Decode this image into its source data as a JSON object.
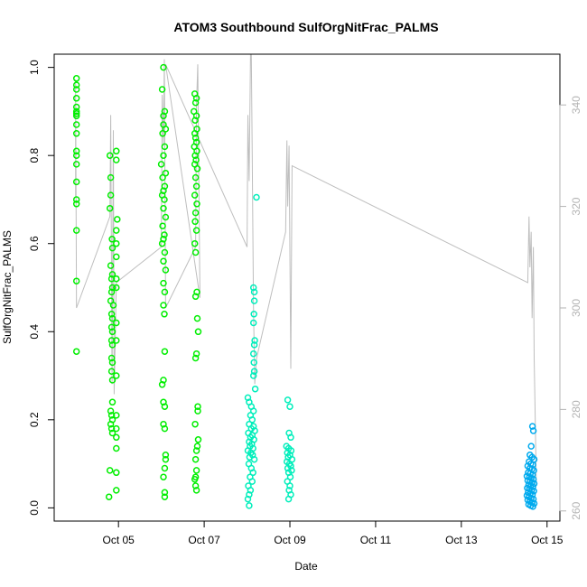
{
  "chart_data": {
    "type": "scatter",
    "title": "ATOM3 Southbound SulfOrgNitFrac_PALMS",
    "xlabel": "Date",
    "ylabel": "SulfOrgNitFrac_PALMS",
    "x_ticks": [
      "Oct 05",
      "Oct 07",
      "Oct 09",
      "Oct 11",
      "Oct 13",
      "Oct 15"
    ],
    "x_tick_days": [
      5,
      7,
      9,
      11,
      13,
      15
    ],
    "xlim_days": [
      3.5,
      15.3
    ],
    "y_ticks": [
      "0.0",
      "0.2",
      "0.4",
      "0.6",
      "0.8",
      "1.0"
    ],
    "y_tick_values": [
      0,
      0.2,
      0.4,
      0.6,
      0.8,
      1.0
    ],
    "ylim": [
      -0.03,
      1.03
    ],
    "y2_ticks": [
      "260",
      "280",
      "300",
      "320",
      "340"
    ],
    "y2_tick_values": [
      260,
      280,
      300,
      320,
      340
    ],
    "y2lim": [
      258,
      350
    ],
    "colors": {
      "point_green": "#00ee00",
      "point_cyan": "#00eebb",
      "point_blue": "#00aaee",
      "overlay_line": "#bebebe",
      "right_axis": "#b3b3b3"
    },
    "legend": "none",
    "grid": false,
    "series": [
      {
        "color": "#00ee00",
        "points": [
          [
            4.02,
            0.975
          ],
          [
            4.02,
            0.96
          ],
          [
            4.02,
            0.95
          ],
          [
            4.02,
            0.93
          ],
          [
            4.02,
            0.91
          ],
          [
            4.02,
            0.9
          ],
          [
            4.02,
            0.895
          ],
          [
            4.02,
            0.89
          ],
          [
            4.02,
            0.87
          ],
          [
            4.02,
            0.85
          ],
          [
            4.02,
            0.81
          ],
          [
            4.02,
            0.8
          ],
          [
            4.02,
            0.78
          ],
          [
            4.02,
            0.74
          ],
          [
            4.02,
            0.7
          ],
          [
            4.02,
            0.69
          ],
          [
            4.02,
            0.63
          ],
          [
            4.02,
            0.515
          ],
          [
            4.02,
            0.355
          ],
          [
            4.8,
            0.8
          ],
          [
            4.82,
            0.75
          ],
          [
            4.82,
            0.71
          ],
          [
            4.8,
            0.68
          ],
          [
            4.85,
            0.61
          ],
          [
            4.86,
            0.59
          ],
          [
            4.82,
            0.55
          ],
          [
            4.86,
            0.53
          ],
          [
            4.84,
            0.52
          ],
          [
            4.86,
            0.5
          ],
          [
            4.84,
            0.49
          ],
          [
            4.82,
            0.47
          ],
          [
            4.88,
            0.46
          ],
          [
            4.84,
            0.44
          ],
          [
            4.86,
            0.43
          ],
          [
            4.84,
            0.41
          ],
          [
            4.86,
            0.4
          ],
          [
            4.84,
            0.38
          ],
          [
            4.86,
            0.37
          ],
          [
            4.84,
            0.34
          ],
          [
            4.86,
            0.33
          ],
          [
            4.84,
            0.31
          ],
          [
            4.86,
            0.29
          ],
          [
            4.86,
            0.24
          ],
          [
            4.82,
            0.22
          ],
          [
            4.84,
            0.21
          ],
          [
            4.86,
            0.2
          ],
          [
            4.82,
            0.19
          ],
          [
            4.84,
            0.18
          ],
          [
            4.86,
            0.17
          ],
          [
            4.8,
            0.085
          ],
          [
            4.78,
            0.025
          ],
          [
            4.95,
            0.81
          ],
          [
            4.95,
            0.79
          ],
          [
            4.97,
            0.655
          ],
          [
            4.95,
            0.63
          ],
          [
            4.95,
            0.6
          ],
          [
            4.95,
            0.57
          ],
          [
            4.95,
            0.52
          ],
          [
            4.95,
            0.5
          ],
          [
            4.95,
            0.42
          ],
          [
            4.95,
            0.38
          ],
          [
            4.95,
            0.3
          ],
          [
            4.95,
            0.21
          ],
          [
            4.95,
            0.18
          ],
          [
            4.95,
            0.16
          ],
          [
            4.95,
            0.135
          ],
          [
            4.95,
            0.08
          ],
          [
            4.95,
            0.04
          ],
          [
            6.05,
            1.0
          ],
          [
            6.02,
            0.95
          ],
          [
            6.08,
            0.9
          ],
          [
            6.05,
            0.89
          ],
          [
            6.05,
            0.87
          ],
          [
            6.1,
            0.86
          ],
          [
            6.03,
            0.85
          ],
          [
            6.08,
            0.82
          ],
          [
            6.05,
            0.8
          ],
          [
            6.0,
            0.78
          ],
          [
            6.1,
            0.76
          ],
          [
            6.03,
            0.75
          ],
          [
            6.08,
            0.73
          ],
          [
            6.05,
            0.72
          ],
          [
            6.02,
            0.71
          ],
          [
            6.07,
            0.7
          ],
          [
            6.05,
            0.68
          ],
          [
            6.1,
            0.66
          ],
          [
            6.03,
            0.64
          ],
          [
            6.07,
            0.62
          ],
          [
            6.05,
            0.61
          ],
          [
            6.02,
            0.6
          ],
          [
            6.08,
            0.58
          ],
          [
            6.05,
            0.56
          ],
          [
            6.1,
            0.54
          ],
          [
            6.05,
            0.51
          ],
          [
            6.08,
            0.49
          ],
          [
            6.05,
            0.46
          ],
          [
            6.07,
            0.44
          ],
          [
            6.08,
            0.355
          ],
          [
            6.05,
            0.29
          ],
          [
            6.02,
            0.28
          ],
          [
            6.05,
            0.24
          ],
          [
            6.08,
            0.23
          ],
          [
            6.05,
            0.19
          ],
          [
            6.08,
            0.18
          ],
          [
            6.1,
            0.12
          ],
          [
            6.1,
            0.11
          ],
          [
            6.08,
            0.09
          ],
          [
            6.05,
            0.07
          ],
          [
            6.08,
            0.035
          ],
          [
            6.08,
            0.025
          ],
          [
            6.78,
            0.94
          ],
          [
            6.82,
            0.93
          ],
          [
            6.8,
            0.92
          ],
          [
            6.76,
            0.9
          ],
          [
            6.82,
            0.89
          ],
          [
            6.79,
            0.88
          ],
          [
            6.83,
            0.86
          ],
          [
            6.78,
            0.85
          ],
          [
            6.8,
            0.84
          ],
          [
            6.82,
            0.83
          ],
          [
            6.77,
            0.82
          ],
          [
            6.83,
            0.81
          ],
          [
            6.79,
            0.8
          ],
          [
            6.81,
            0.79
          ],
          [
            6.78,
            0.78
          ],
          [
            6.84,
            0.77
          ],
          [
            6.8,
            0.75
          ],
          [
            6.82,
            0.73
          ],
          [
            6.78,
            0.71
          ],
          [
            6.83,
            0.69
          ],
          [
            6.8,
            0.67
          ],
          [
            6.79,
            0.65
          ],
          [
            6.82,
            0.63
          ],
          [
            6.78,
            0.6
          ],
          [
            6.8,
            0.58
          ],
          [
            6.83,
            0.49
          ],
          [
            6.8,
            0.48
          ],
          [
            6.84,
            0.43
          ],
          [
            6.86,
            0.4
          ],
          [
            6.82,
            0.35
          ],
          [
            6.8,
            0.34
          ],
          [
            6.85,
            0.23
          ],
          [
            6.85,
            0.22
          ],
          [
            6.79,
            0.19
          ],
          [
            6.86,
            0.155
          ],
          [
            6.84,
            0.14
          ],
          [
            6.82,
            0.13
          ],
          [
            6.8,
            0.11
          ],
          [
            6.82,
            0.085
          ],
          [
            6.8,
            0.07
          ],
          [
            6.78,
            0.065
          ],
          [
            6.8,
            0.05
          ],
          [
            6.82,
            0.04
          ]
        ]
      },
      {
        "color": "#00eebb",
        "points": [
          [
            8.22,
            0.705
          ],
          [
            8.15,
            0.5
          ],
          [
            8.17,
            0.49
          ],
          [
            8.17,
            0.47
          ],
          [
            8.16,
            0.44
          ],
          [
            8.15,
            0.42
          ],
          [
            8.18,
            0.38
          ],
          [
            8.17,
            0.37
          ],
          [
            8.15,
            0.35
          ],
          [
            8.16,
            0.33
          ],
          [
            8.17,
            0.31
          ],
          [
            8.15,
            0.3
          ],
          [
            8.19,
            0.27
          ],
          [
            8.02,
            0.25
          ],
          [
            8.05,
            0.24
          ],
          [
            8.1,
            0.23
          ],
          [
            8.15,
            0.22
          ],
          [
            8.08,
            0.21
          ],
          [
            8.12,
            0.2
          ],
          [
            8.05,
            0.19
          ],
          [
            8.15,
            0.185
          ],
          [
            8.1,
            0.18
          ],
          [
            8.18,
            0.175
          ],
          [
            8.03,
            0.17
          ],
          [
            8.12,
            0.165
          ],
          [
            8.08,
            0.16
          ],
          [
            8.16,
            0.155
          ],
          [
            8.05,
            0.15
          ],
          [
            8.11,
            0.145
          ],
          [
            8.07,
            0.14
          ],
          [
            8.14,
            0.135
          ],
          [
            8.02,
            0.13
          ],
          [
            8.09,
            0.125
          ],
          [
            8.13,
            0.12
          ],
          [
            8.06,
            0.115
          ],
          [
            8.17,
            0.11
          ],
          [
            8.04,
            0.1
          ],
          [
            8.1,
            0.09
          ],
          [
            8.14,
            0.08
          ],
          [
            8.07,
            0.07
          ],
          [
            8.12,
            0.06
          ],
          [
            8.03,
            0.05
          ],
          [
            8.08,
            0.04
          ],
          [
            8.05,
            0.03
          ],
          [
            8.02,
            0.02
          ],
          [
            8.05,
            0.005
          ],
          [
            8.95,
            0.245
          ],
          [
            9.0,
            0.23
          ],
          [
            8.98,
            0.17
          ],
          [
            9.02,
            0.16
          ],
          [
            8.92,
            0.14
          ],
          [
            8.97,
            0.135
          ],
          [
            9.03,
            0.13
          ],
          [
            8.94,
            0.125
          ],
          [
            9.0,
            0.12
          ],
          [
            8.96,
            0.115
          ],
          [
            9.05,
            0.11
          ],
          [
            8.93,
            0.105
          ],
          [
            8.99,
            0.1
          ],
          [
            9.02,
            0.095
          ],
          [
            8.95,
            0.09
          ],
          [
            9.04,
            0.085
          ],
          [
            8.97,
            0.08
          ],
          [
            9.01,
            0.07
          ],
          [
            8.94,
            0.06
          ],
          [
            9.0,
            0.05
          ],
          [
            8.98,
            0.04
          ],
          [
            9.02,
            0.03
          ],
          [
            8.97,
            0.02
          ]
        ]
      },
      {
        "color": "#00aaee",
        "points": [
          [
            14.66,
            0.185
          ],
          [
            14.68,
            0.175
          ],
          [
            14.63,
            0.14
          ],
          [
            14.6,
            0.12
          ],
          [
            14.65,
            0.115
          ],
          [
            14.7,
            0.11
          ],
          [
            14.58,
            0.105
          ],
          [
            14.62,
            0.1
          ],
          [
            14.67,
            0.098
          ],
          [
            14.55,
            0.095
          ],
          [
            14.6,
            0.09
          ],
          [
            14.65,
            0.088
          ],
          [
            14.69,
            0.085
          ],
          [
            14.56,
            0.08
          ],
          [
            14.61,
            0.078
          ],
          [
            14.66,
            0.075
          ],
          [
            14.53,
            0.072
          ],
          [
            14.59,
            0.07
          ],
          [
            14.63,
            0.068
          ],
          [
            14.68,
            0.065
          ],
          [
            14.55,
            0.062
          ],
          [
            14.6,
            0.06
          ],
          [
            14.65,
            0.058
          ],
          [
            14.7,
            0.055
          ],
          [
            14.57,
            0.052
          ],
          [
            14.62,
            0.05
          ],
          [
            14.67,
            0.048
          ],
          [
            14.54,
            0.045
          ],
          [
            14.59,
            0.043
          ],
          [
            14.64,
            0.04
          ],
          [
            14.69,
            0.038
          ],
          [
            14.56,
            0.035
          ],
          [
            14.61,
            0.033
          ],
          [
            14.66,
            0.03
          ],
          [
            14.53,
            0.028
          ],
          [
            14.58,
            0.025
          ],
          [
            14.63,
            0.022
          ],
          [
            14.68,
            0.02
          ],
          [
            14.55,
            0.018
          ],
          [
            14.6,
            0.015
          ],
          [
            14.65,
            0.012
          ],
          [
            14.7,
            0.01
          ],
          [
            14.57,
            0.008
          ],
          [
            14.62,
            0.005
          ],
          [
            14.67,
            0.003
          ]
        ]
      }
    ],
    "overlay_line": {
      "axis": "y2",
      "color": "#bebebe",
      "points": [
        [
          4.0,
          322
        ],
        [
          4.0,
          345
        ],
        [
          4.02,
          300
        ],
        [
          4.8,
          318
        ],
        [
          4.82,
          338
        ],
        [
          4.85,
          285
        ],
        [
          4.88,
          335
        ],
        [
          4.9,
          283
        ],
        [
          4.95,
          305
        ],
        [
          6.0,
          312
        ],
        [
          6.02,
          342
        ],
        [
          6.05,
          332
        ],
        [
          6.07,
          349
        ],
        [
          6.1,
          300
        ],
        [
          6.8,
          312
        ],
        [
          6.82,
          340
        ],
        [
          6.85,
          348
        ],
        [
          6.9,
          302
        ],
        [
          6.1,
          348
        ],
        [
          8.0,
          312
        ],
        [
          8.02,
          338
        ],
        [
          8.05,
          325
        ],
        [
          8.08,
          352
        ],
        [
          8.1,
          365
        ],
        [
          8.12,
          330
        ],
        [
          8.15,
          300
        ],
        [
          8.18,
          285
        ],
        [
          8.22,
          290
        ],
        [
          8.9,
          315
        ],
        [
          8.93,
          333
        ],
        [
          8.95,
          320
        ],
        [
          8.98,
          332
        ],
        [
          9.02,
          288
        ],
        [
          9.05,
          328
        ],
        [
          14.55,
          305
        ],
        [
          14.58,
          318
        ],
        [
          14.6,
          308
        ],
        [
          14.63,
          315
        ],
        [
          14.65,
          298
        ],
        [
          14.68,
          312
        ],
        [
          14.7,
          290
        ],
        [
          14.72,
          280
        ],
        [
          14.75,
          265
        ]
      ]
    }
  }
}
